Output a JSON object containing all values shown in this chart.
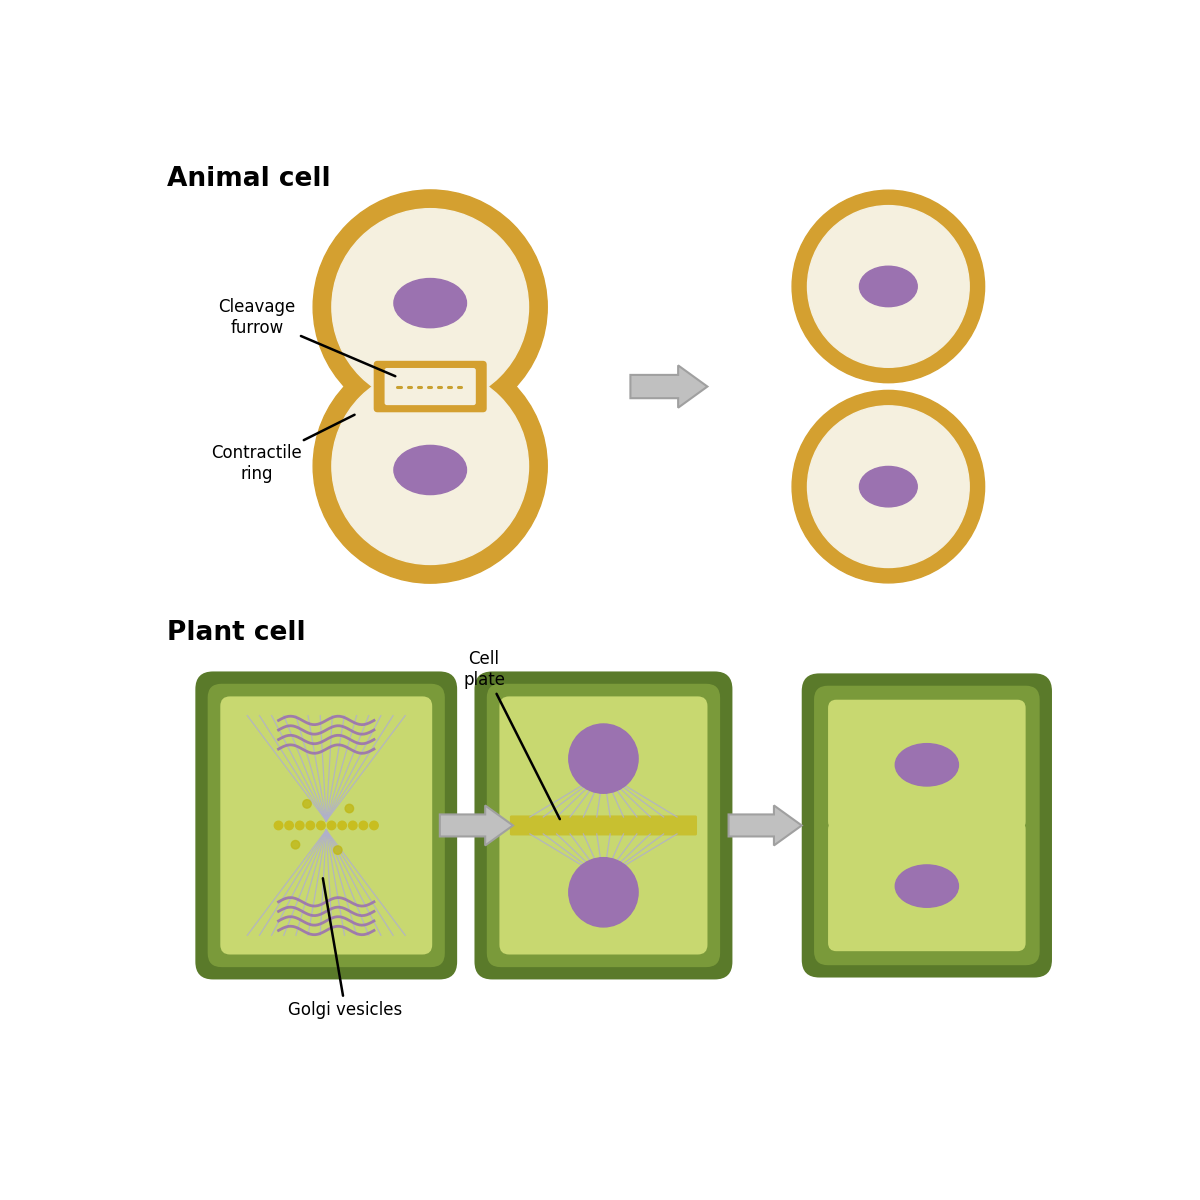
{
  "bg_color": "#ffffff",
  "animal_membrane_color": "#d4a030",
  "animal_cytoplasm_color": "#f5f0df",
  "animal_nucleus_color": "#9b72b0",
  "plant_wall_dark": "#5a7a2a",
  "plant_wall_medium": "#7a9a3a",
  "plant_cytoplasm": "#c8d870",
  "plant_nucleus_color": "#9b72b0",
  "plant_spindle_color": "#b0b0cc",
  "plant_golgi_color": "#9b72b0",
  "cell_plate_color": "#c8c030",
  "arrow_fill": "#c0c0c0",
  "arrow_edge": "#a0a0a0",
  "furrow_dashed_color": "#c8a030",
  "title_animal": "Animal cell",
  "title_plant": "Plant cell",
  "label_cleavage": "Cleavage\nfurrow",
  "label_contractile": "Contractile\nring",
  "label_cell_plate": "Cell\nplate",
  "label_golgi": "Golgi vesicles"
}
